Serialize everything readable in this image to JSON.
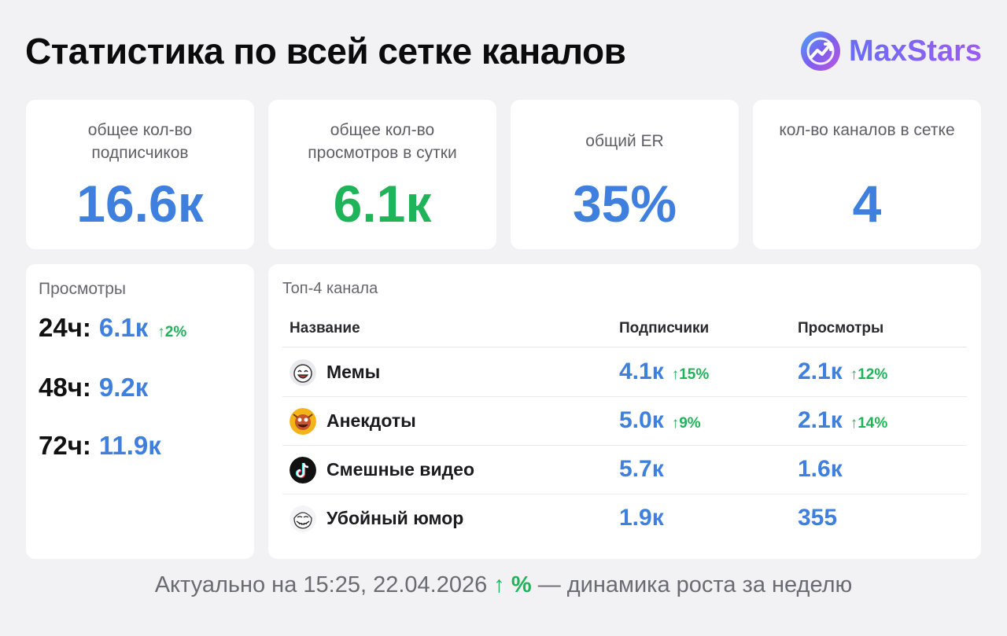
{
  "header": {
    "title": "Статистика по всей сетке каналов",
    "brand": "MaxStars",
    "brand_color": "#7a5ff0"
  },
  "stats": [
    {
      "label": "общее кол-во подписчиков",
      "value": "16.6к",
      "color": "blue"
    },
    {
      "label": "общее кол-во просмотров в сутки",
      "value": "6.1к",
      "color": "green"
    },
    {
      "label": "общий ER",
      "value": "35%",
      "color": "blue"
    },
    {
      "label": "кол-во каналов в сетке",
      "value": "4",
      "color": "blue"
    }
  ],
  "views": {
    "title": "Просмотры",
    "rows": [
      {
        "label": "24ч:",
        "value": "6.1к",
        "change": "↑2%"
      },
      {
        "label": "48ч:",
        "value": "9.2к",
        "change": ""
      },
      {
        "label": "72ч:",
        "value": "11.9к",
        "change": ""
      }
    ]
  },
  "top": {
    "title": "Топ-4 канала",
    "columns": [
      "Название",
      "Подписчики",
      "Просмотры"
    ],
    "rows": [
      {
        "icon": "meme-face-icon",
        "name": "Мемы",
        "subs": "4.1к",
        "subs_change": "↑15%",
        "views": "2.1к",
        "views_change": "↑12%"
      },
      {
        "icon": "jokes-icon",
        "name": "Анекдоты",
        "subs": "5.0к",
        "subs_change": "↑9%",
        "views": "2.1к",
        "views_change": "↑14%"
      },
      {
        "icon": "tiktok-icon",
        "name": "Смешные видео",
        "subs": "5.7к",
        "subs_change": "",
        "views": "1.6к",
        "views_change": ""
      },
      {
        "icon": "troll-face-icon",
        "name": "Убойный юмор",
        "subs": "1.9к",
        "subs_change": "",
        "views": "355",
        "views_change": ""
      }
    ]
  },
  "footer": {
    "prefix": "Актуально на 15:25, 22.04.2026",
    "arrow": "↑ %",
    "suffix": "— динамика роста за неделю"
  },
  "colors": {
    "blue": "#3f7fde",
    "green": "#1fb35a",
    "background": "#f2f2f4"
  }
}
